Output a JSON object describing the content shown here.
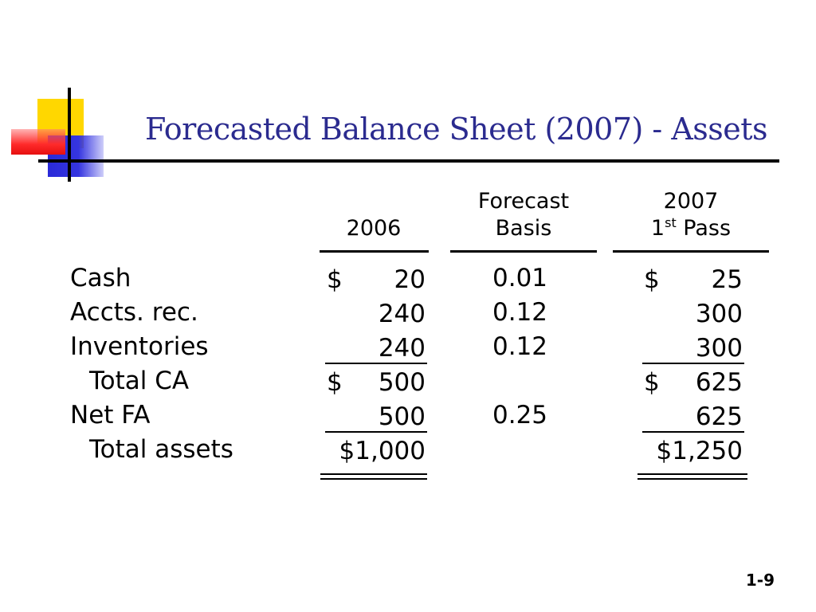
{
  "title": "Forecasted Balance Sheet (2007)  - Assets",
  "headers": {
    "col2006": "2006",
    "basis_line1": "Forecast",
    "basis_line2": "Basis",
    "col2007_line1": "2007",
    "col2007_line2_num": "1",
    "col2007_line2_sup": "st",
    "col2007_line2_rest": " Pass"
  },
  "rows": [
    {
      "label": "Cash",
      "sym2006": "$",
      "val2006": "20",
      "basis": "0.01",
      "sym2007": "$",
      "val2007": "25"
    },
    {
      "label": "Accts. rec.",
      "sym2006": "",
      "val2006": "240",
      "basis": "0.12",
      "sym2007": "",
      "val2007": "300"
    },
    {
      "label": "Inventories",
      "sym2006": "",
      "val2006": "240",
      "basis": "0.12",
      "sym2007": "",
      "val2007": "300"
    },
    {
      "label": "Total CA",
      "sym2006": "$",
      "val2006": "500",
      "basis": "",
      "sym2007": "$",
      "val2007": "625"
    },
    {
      "label": "Net FA",
      "sym2006": "",
      "val2006": "500",
      "basis": "0.25",
      "sym2007": "",
      "val2007": "625"
    },
    {
      "label": "Total assets",
      "sym2006": "",
      "val2006": "$1,000",
      "basis": "",
      "sym2007": "",
      "val2007": "$1,250"
    }
  ],
  "page_number": "1-9"
}
